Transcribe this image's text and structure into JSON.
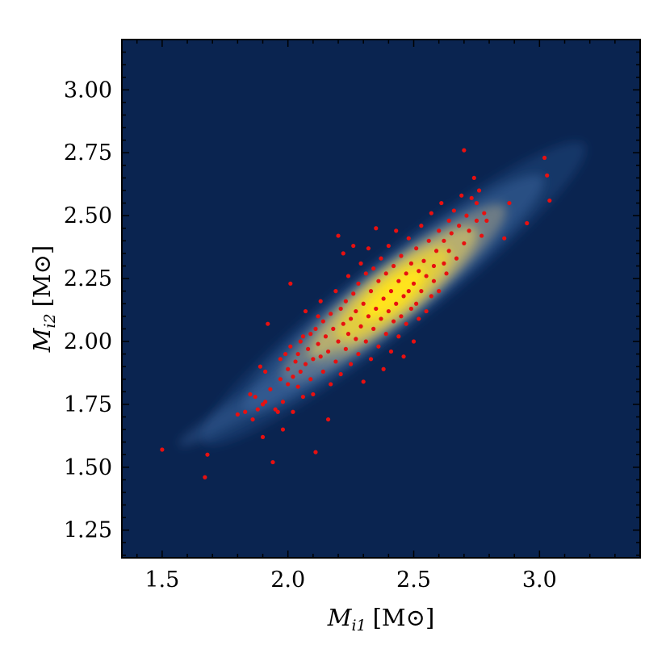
{
  "chart_data": {
    "type": "scatter",
    "background": "density-heatmap",
    "xlabel": {
      "symbol": "M",
      "subscript": "i1",
      "unit": "[M",
      "unit_sym": "⊙",
      "unit_close": "]"
    },
    "ylabel": {
      "symbol": "M",
      "subscript": "i2",
      "unit": "[M",
      "unit_sym": "⊙",
      "unit_close": "]"
    },
    "xlim": [
      1.34,
      3.4
    ],
    "ylim": [
      1.14,
      3.2
    ],
    "xticks": [
      "1.5",
      "2.0",
      "2.5",
      "3.0"
    ],
    "xtick_values": [
      1.5,
      2.0,
      2.5,
      3.0
    ],
    "yticks": [
      "1.25",
      "1.50",
      "1.75",
      "2.00",
      "2.25",
      "2.50",
      "2.75",
      "3.00"
    ],
    "ytick_values": [
      1.25,
      1.5,
      1.75,
      2.0,
      2.25,
      2.5,
      2.75,
      3.0
    ],
    "grid": false,
    "colors": {
      "background": "#0a2450",
      "density_low": "#2a5a9a",
      "density_mid": "#b8b07a",
      "density_high": "#ffe21e",
      "points": "#e81010"
    },
    "density_peak": {
      "x": 2.42,
      "y": 2.19
    },
    "points": [
      [
        1.5,
        1.57
      ],
      [
        1.67,
        1.46
      ],
      [
        1.68,
        1.55
      ],
      [
        1.8,
        1.71
      ],
      [
        1.83,
        1.72
      ],
      [
        1.85,
        1.79
      ],
      [
        1.86,
        1.69
      ],
      [
        1.87,
        1.78
      ],
      [
        1.88,
        1.73
      ],
      [
        1.89,
        1.9
      ],
      [
        1.9,
        1.62
      ],
      [
        1.9,
        1.75
      ],
      [
        1.91,
        1.76
      ],
      [
        1.91,
        1.88
      ],
      [
        1.92,
        2.07
      ],
      [
        1.93,
        1.81
      ],
      [
        1.94,
        1.52
      ],
      [
        1.95,
        1.73
      ],
      [
        1.96,
        1.72
      ],
      [
        1.97,
        1.85
      ],
      [
        1.97,
        1.93
      ],
      [
        1.98,
        1.76
      ],
      [
        1.98,
        1.65
      ],
      [
        1.99,
        1.95
      ],
      [
        2.0,
        1.83
      ],
      [
        2.0,
        1.89
      ],
      [
        2.01,
        2.23
      ],
      [
        2.01,
        1.98
      ],
      [
        2.02,
        1.72
      ],
      [
        2.02,
        1.86
      ],
      [
        2.03,
        1.92
      ],
      [
        2.04,
        1.82
      ],
      [
        2.04,
        1.95
      ],
      [
        2.05,
        2.0
      ],
      [
        2.05,
        1.88
      ],
      [
        2.06,
        1.78
      ],
      [
        2.06,
        2.02
      ],
      [
        2.07,
        1.91
      ],
      [
        2.07,
        2.12
      ],
      [
        2.08,
        1.97
      ],
      [
        2.09,
        1.85
      ],
      [
        2.09,
        2.03
      ],
      [
        2.1,
        1.93
      ],
      [
        2.1,
        1.79
      ],
      [
        2.11,
        1.56
      ],
      [
        2.11,
        2.05
      ],
      [
        2.12,
        1.99
      ],
      [
        2.12,
        2.1
      ],
      [
        2.13,
        1.94
      ],
      [
        2.13,
        2.16
      ],
      [
        2.14,
        2.08
      ],
      [
        2.14,
        1.88
      ],
      [
        2.15,
        2.02
      ],
      [
        2.16,
        1.69
      ],
      [
        2.16,
        1.96
      ],
      [
        2.17,
        2.11
      ],
      [
        2.17,
        1.83
      ],
      [
        2.18,
        2.05
      ],
      [
        2.19,
        1.92
      ],
      [
        2.19,
        2.2
      ],
      [
        2.2,
        2.42
      ],
      [
        2.2,
        2.0
      ],
      [
        2.21,
        2.13
      ],
      [
        2.21,
        1.87
      ],
      [
        2.22,
        2.07
      ],
      [
        2.22,
        2.35
      ],
      [
        2.23,
        1.97
      ],
      [
        2.23,
        2.16
      ],
      [
        2.24,
        2.03
      ],
      [
        2.24,
        2.26
      ],
      [
        2.25,
        1.91
      ],
      [
        2.25,
        2.09
      ],
      [
        2.26,
        2.19
      ],
      [
        2.26,
        2.38
      ],
      [
        2.27,
        2.01
      ],
      [
        2.27,
        2.12
      ],
      [
        2.28,
        1.95
      ],
      [
        2.28,
        2.23
      ],
      [
        2.29,
        2.06
      ],
      [
        2.29,
        2.31
      ],
      [
        2.3,
        1.84
      ],
      [
        2.3,
        2.15
      ],
      [
        2.31,
        2.0
      ],
      [
        2.31,
        2.27
      ],
      [
        2.32,
        2.1
      ],
      [
        2.32,
        2.37
      ],
      [
        2.33,
        1.93
      ],
      [
        2.33,
        2.2
      ],
      [
        2.34,
        2.05
      ],
      [
        2.34,
        2.29
      ],
      [
        2.35,
        2.13
      ],
      [
        2.35,
        2.45
      ],
      [
        2.36,
        1.98
      ],
      [
        2.36,
        2.24
      ],
      [
        2.37,
        2.09
      ],
      [
        2.37,
        2.33
      ],
      [
        2.38,
        2.17
      ],
      [
        2.38,
        1.89
      ],
      [
        2.39,
        2.03
      ],
      [
        2.39,
        2.27
      ],
      [
        2.4,
        2.12
      ],
      [
        2.4,
        2.38
      ],
      [
        2.41,
        2.2
      ],
      [
        2.41,
        1.96
      ],
      [
        2.42,
        2.08
      ],
      [
        2.42,
        2.3
      ],
      [
        2.43,
        2.15
      ],
      [
        2.43,
        2.44
      ],
      [
        2.44,
        2.02
      ],
      [
        2.44,
        2.24
      ],
      [
        2.45,
        2.1
      ],
      [
        2.45,
        2.34
      ],
      [
        2.46,
        2.18
      ],
      [
        2.46,
        1.94
      ],
      [
        2.47,
        2.27
      ],
      [
        2.47,
        2.07
      ],
      [
        2.48,
        2.2
      ],
      [
        2.48,
        2.41
      ],
      [
        2.49,
        2.13
      ],
      [
        2.49,
        2.31
      ],
      [
        2.5,
        2.0
      ],
      [
        2.5,
        2.23
      ],
      [
        2.51,
        2.15
      ],
      [
        2.51,
        2.37
      ],
      [
        2.52,
        2.28
      ],
      [
        2.52,
        2.09
      ],
      [
        2.53,
        2.2
      ],
      [
        2.53,
        2.46
      ],
      [
        2.54,
        2.32
      ],
      [
        2.55,
        2.12
      ],
      [
        2.55,
        2.26
      ],
      [
        2.56,
        2.4
      ],
      [
        2.57,
        2.18
      ],
      [
        2.57,
        2.51
      ],
      [
        2.58,
        2.3
      ],
      [
        2.58,
        2.24
      ],
      [
        2.59,
        2.36
      ],
      [
        2.6,
        2.44
      ],
      [
        2.6,
        2.2
      ],
      [
        2.61,
        2.55
      ],
      [
        2.62,
        2.31
      ],
      [
        2.62,
        2.4
      ],
      [
        2.63,
        2.27
      ],
      [
        2.64,
        2.48
      ],
      [
        2.64,
        2.36
      ],
      [
        2.65,
        2.43
      ],
      [
        2.66,
        2.52
      ],
      [
        2.67,
        2.33
      ],
      [
        2.68,
        2.46
      ],
      [
        2.69,
        2.58
      ],
      [
        2.7,
        2.76
      ],
      [
        2.7,
        2.39
      ],
      [
        2.71,
        2.5
      ],
      [
        2.72,
        2.44
      ],
      [
        2.73,
        2.57
      ],
      [
        2.74,
        2.65
      ],
      [
        2.75,
        2.48
      ],
      [
        2.75,
        2.55
      ],
      [
        2.76,
        2.6
      ],
      [
        2.77,
        2.42
      ],
      [
        2.78,
        2.51
      ],
      [
        2.79,
        2.48
      ],
      [
        2.86,
        2.41
      ],
      [
        2.88,
        2.55
      ],
      [
        2.95,
        2.47
      ],
      [
        3.02,
        2.73
      ],
      [
        3.03,
        2.66
      ],
      [
        3.04,
        2.56
      ]
    ]
  }
}
